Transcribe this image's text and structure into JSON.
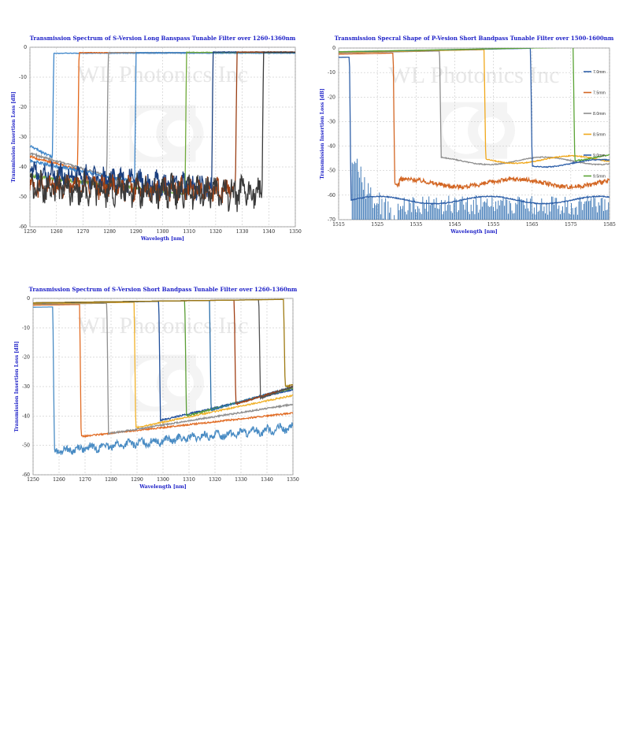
{
  "watermark": "WL Photonics Inc",
  "chart_data": [
    {
      "id": "c1",
      "type": "line",
      "title": "Transmission Spectrum of S-Version Long Banspass Tunable Filter over 1260-1360nm",
      "xlabel": "Wavelegth [nm]",
      "ylabel": "Transmission Insertion Loss [dB]",
      "xlim": [
        1250,
        1350
      ],
      "ylim": [
        -60,
        0
      ],
      "xticks": [
        1250,
        1260,
        1270,
        1280,
        1290,
        1300,
        1310,
        1320,
        1330,
        1340,
        1350
      ],
      "yticks": [
        0,
        -10,
        -20,
        -30,
        -40,
        -50,
        -60
      ],
      "grid": true,
      "legend": "none",
      "series": [
        {
          "color": "#3f86c9",
          "edge": 1259,
          "floor_left": -33,
          "floor_right": -37,
          "noise": 0.4,
          "pass": -2,
          "pass_drift": 0
        },
        {
          "color": "#e2661a",
          "edge": 1268.5,
          "floor_left": -36.5,
          "floor_right": -41,
          "noise": 0.4,
          "pass": -1.8,
          "pass_drift": 0
        },
        {
          "color": "#8e8e8e",
          "edge": 1279.5,
          "floor_left": -35.5,
          "floor_right": -43,
          "noise": 0.4,
          "pass": -1.8,
          "pass_drift": 0
        },
        {
          "color": "#3f86c9",
          "edge": 1290,
          "floor_left": -38,
          "floor_right": -45,
          "noise": 0.5,
          "pass": -1.8,
          "pass_drift": 0
        },
        {
          "color": "#6fa93a",
          "edge": 1309,
          "floor_left": -43,
          "floor_right": -49,
          "noise": 0.5,
          "pass": -1.7,
          "pass_drift": 0
        },
        {
          "color": "#1a3f7f",
          "edge": 1319,
          "floor_left": -42,
          "floor_right": -47,
          "noise": 3,
          "pass": -1.6,
          "pass_drift": 0
        },
        {
          "color": "#9b3f14",
          "edge": 1328,
          "floor_left": -46,
          "floor_right": -48,
          "noise": 3,
          "pass": -1.6,
          "pass_drift": 0
        },
        {
          "color": "#3a3a3a",
          "edge": 1338,
          "floor_left": -47,
          "floor_right": -49,
          "noise": 4,
          "pass": -1.7,
          "pass_drift": 0.1
        }
      ]
    },
    {
      "id": "c2",
      "type": "line",
      "title": "Transmission Specral Shape of P-Vesion Short Bandpass Tunable Filter over 1500-1600nm",
      "xlabel": "Wavelength [nm]",
      "ylabel": "Transmission Insertion Loss [dB]",
      "xlim": [
        1515,
        1585
      ],
      "ylim": [
        -70,
        0
      ],
      "xticks": [
        1515,
        1525,
        1535,
        1545,
        1555,
        1565,
        1575,
        1585
      ],
      "yticks": [
        0,
        -10,
        -20,
        -30,
        -40,
        -50,
        -60,
        -70
      ],
      "grid": true,
      "legend": "right",
      "series": [
        {
          "name": "7.0mm",
          "color": "#2e5fa8",
          "edge": 1518.2,
          "floor": -62,
          "pass": -3.8
        },
        {
          "name": "7.5mm",
          "color": "#d36623",
          "edge": 1529.5,
          "floor": -55,
          "pass": -2.5
        },
        {
          "name": "8.0mm",
          "color": "#8e8e8e",
          "edge": 1541.5,
          "floor": -46,
          "pass": -2
        },
        {
          "name": "8.5mm",
          "color": "#f0a81c",
          "edge": 1553,
          "floor": -45.5,
          "pass": -1.8
        },
        {
          "name": "9.0mm",
          "color": "#2e5fa8",
          "edge": 1565,
          "floor": -47,
          "pass": -1.6
        },
        {
          "name": "9.5mm",
          "color": "#5aa335",
          "edge": 1576,
          "floor": -44.5,
          "pass": -1.5
        }
      ]
    },
    {
      "id": "c3",
      "type": "line",
      "title": "Transmission Spectrum of S-Version Short Bandpass Tunable Filter over 1260-1360nm",
      "xlabel": "Wavelength [nm]",
      "ylabel": "Transmission Insertion Loss [dB]",
      "xlim": [
        1250,
        1350
      ],
      "ylim": [
        -60,
        0
      ],
      "xticks": [
        1250,
        1260,
        1270,
        1280,
        1290,
        1300,
        1310,
        1320,
        1330,
        1340,
        1350
      ],
      "yticks": [
        0,
        -10,
        -20,
        -30,
        -40,
        -50,
        -60
      ],
      "grid": true,
      "legend": "none",
      "series": [
        {
          "color": "#4a8cc4",
          "edge": 1258.2,
          "floor_start": -52,
          "floor_end": -44,
          "pass": -3
        },
        {
          "color": "#e16d26",
          "edge": 1268.5,
          "floor_start": -47,
          "floor_end": -39,
          "pass": -2.3
        },
        {
          "color": "#8e8e8e",
          "edge": 1279,
          "floor_start": -46,
          "floor_end": -36,
          "pass": -2
        },
        {
          "color": "#f0b12a",
          "edge": 1289.5,
          "floor_start": -44,
          "floor_end": -33,
          "pass": -1.8
        },
        {
          "color": "#1f4e9a",
          "edge": 1299,
          "floor_start": -41.5,
          "floor_end": -31,
          "pass": -1.6
        },
        {
          "color": "#5a9d35",
          "edge": 1309,
          "floor_start": -40,
          "floor_end": -30.5,
          "pass": -1.5
        },
        {
          "color": "#2a6fab",
          "edge": 1318.5,
          "floor_start": -38,
          "floor_end": -30,
          "pass": -1.5
        },
        {
          "color": "#a13f14",
          "edge": 1328,
          "floor_start": -36,
          "floor_end": -30,
          "pass": -1.5
        },
        {
          "color": "#525252",
          "edge": 1337.5,
          "floor_start": -34,
          "floor_end": -30,
          "pass": -1.5
        },
        {
          "color": "#9e7a12",
          "edge": 1347,
          "floor_start": -30,
          "floor_end": -29.5,
          "pass": -1.5
        }
      ]
    }
  ]
}
